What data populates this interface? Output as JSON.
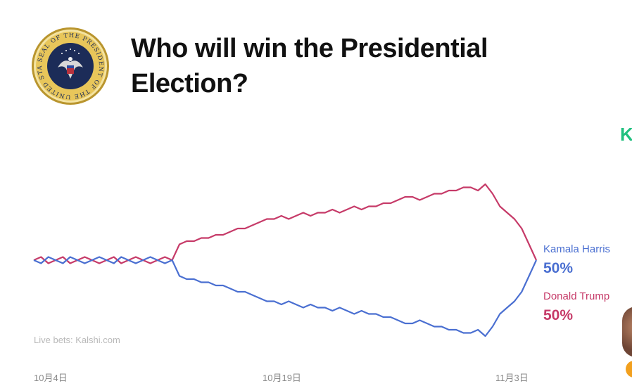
{
  "title_lines": [
    "Who will win the Presidential",
    "Election?"
  ],
  "brand_fragment": "K",
  "source_note": "Live bets: Kalshi.com",
  "seal": {
    "text_top": "SEAL OF THE PRESIDENT OF THE UNITED STATES",
    "colors": {
      "ring": "#e8c65a",
      "inner": "#1c2c58",
      "edge": "#b9952e"
    }
  },
  "chart_data": {
    "type": "line",
    "title": "Who will win the Presidential Election?",
    "x_ticks": [
      "10月4日",
      "10月19日",
      "11月3日"
    ],
    "ylim": [
      0,
      100
    ],
    "grid": false,
    "legend_placement": "right",
    "series": [
      {
        "name": "Kamala Harris",
        "color": "#4a6fd1",
        "final_label": "50%",
        "values": [
          50,
          49,
          51,
          50,
          49,
          51,
          50,
          49,
          50,
          51,
          50,
          49,
          51,
          50,
          49,
          50,
          51,
          50,
          49,
          50,
          45,
          44,
          44,
          43,
          43,
          42,
          42,
          41,
          40,
          40,
          39,
          38,
          37,
          37,
          36,
          37,
          36,
          35,
          36,
          35,
          35,
          34,
          35,
          34,
          33,
          34,
          33,
          33,
          32,
          32,
          31,
          30,
          30,
          31,
          30,
          29,
          29,
          28,
          28,
          27,
          27,
          28,
          26,
          29,
          33,
          35,
          37,
          40,
          45,
          50
        ]
      },
      {
        "name": "Donald Trump",
        "color": "#c63a68",
        "final_label": "50%",
        "values": [
          50,
          51,
          49,
          50,
          51,
          49,
          50,
          51,
          50,
          49,
          50,
          51,
          49,
          50,
          51,
          50,
          49,
          50,
          51,
          50,
          55,
          56,
          56,
          57,
          57,
          58,
          58,
          59,
          60,
          60,
          61,
          62,
          63,
          63,
          64,
          63,
          64,
          65,
          64,
          65,
          65,
          66,
          65,
          66,
          67,
          66,
          67,
          67,
          68,
          68,
          69,
          70,
          70,
          69,
          70,
          71,
          71,
          72,
          72,
          73,
          73,
          72,
          74,
          71,
          67,
          65,
          63,
          60,
          55,
          50
        ]
      }
    ]
  }
}
